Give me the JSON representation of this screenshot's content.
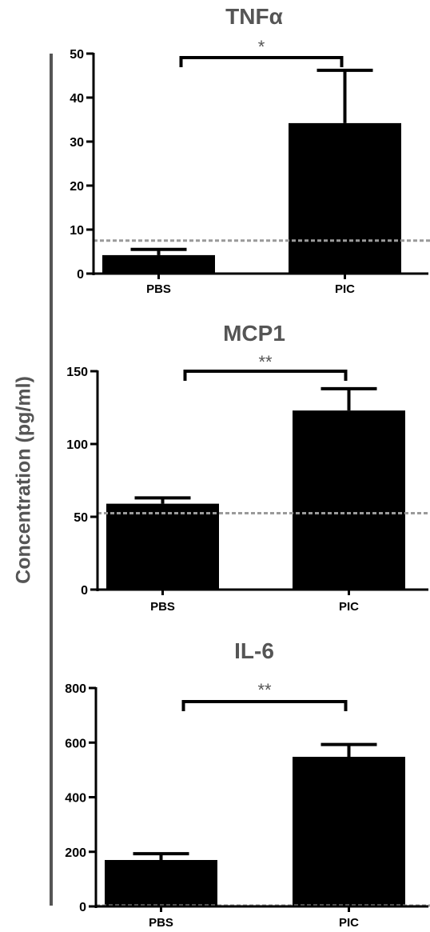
{
  "figure": {
    "ylabel": "Concentration (pg/ml)",
    "colors": {
      "bar": "#000000",
      "axis": "#000000",
      "title": "#555555",
      "threshold": "#9a9a9a",
      "ylabel": "#555555"
    }
  },
  "chart_data": [
    {
      "type": "bar",
      "title": "TNFα",
      "categories": [
        "PBS",
        "PIC"
      ],
      "values": [
        4.2,
        34.2
      ],
      "errors": [
        1.3,
        12.0
      ],
      "ylim": [
        0,
        50
      ],
      "yticks": [
        0,
        10,
        20,
        30,
        40,
        50
      ],
      "threshold": 7.5,
      "significance": "*",
      "grid": false
    },
    {
      "type": "bar",
      "title": "MCP1",
      "categories": [
        "PBS",
        "PIC"
      ],
      "values": [
        59,
        123
      ],
      "errors": [
        4,
        15
      ],
      "ylim": [
        0,
        150
      ],
      "yticks": [
        0,
        50,
        100,
        150
      ],
      "threshold": 52.5,
      "significance": "**",
      "grid": false
    },
    {
      "type": "bar",
      "title": "IL-6",
      "categories": [
        "PBS",
        "PIC"
      ],
      "values": [
        170,
        548
      ],
      "errors": [
        23,
        45
      ],
      "ylim": [
        0,
        800
      ],
      "yticks": [
        0,
        200,
        400,
        600,
        800
      ],
      "threshold": 3,
      "significance": "**",
      "grid": false
    }
  ]
}
